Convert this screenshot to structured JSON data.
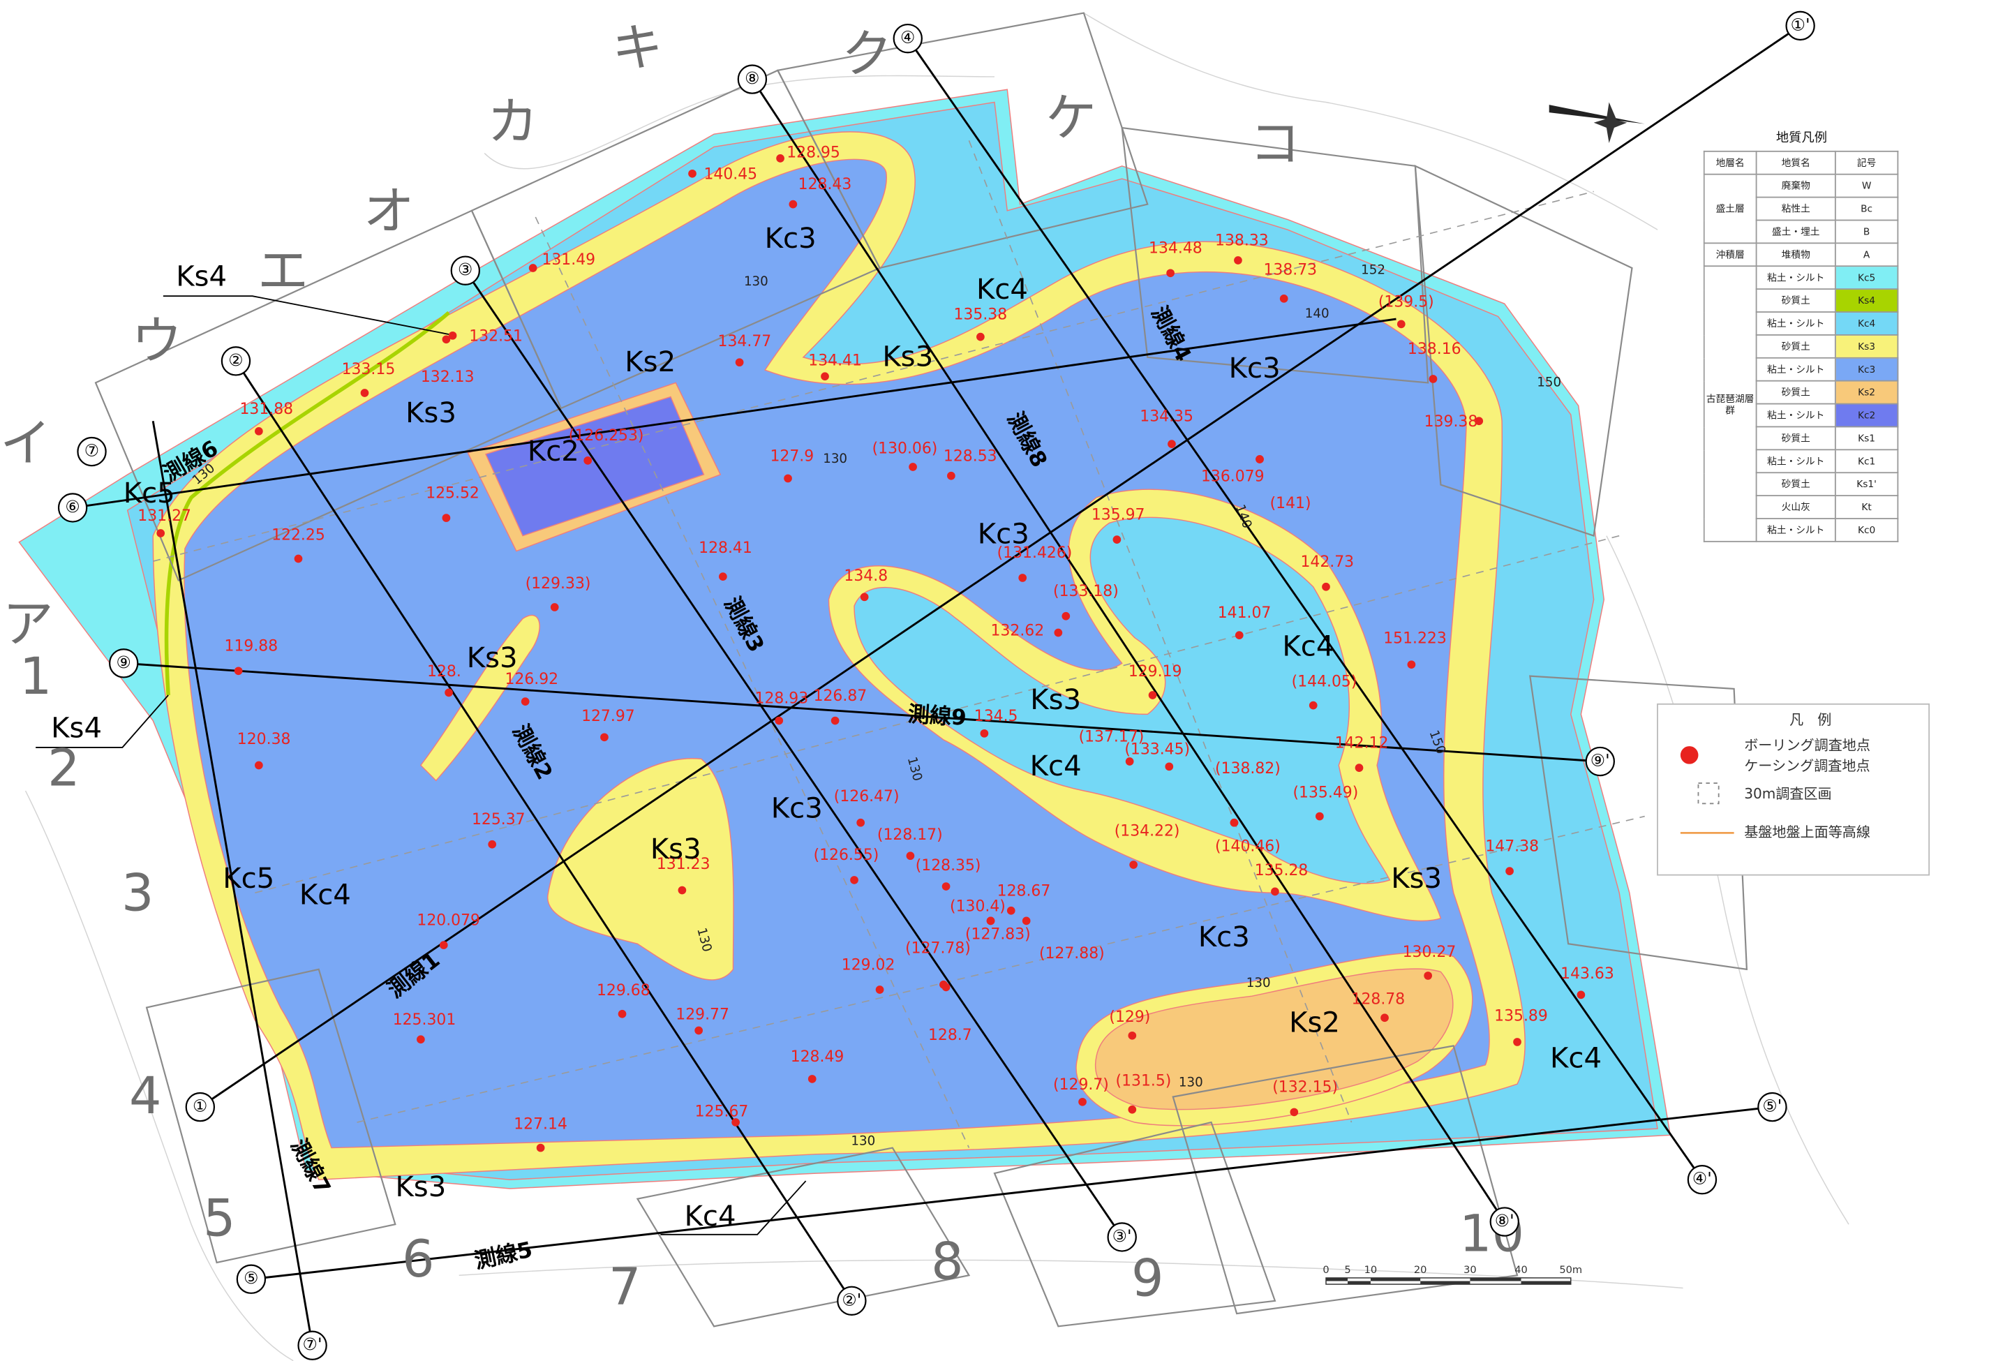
{
  "map": {
    "grid_columns": [
      "ア",
      "イ",
      "ウ",
      "エ",
      "オ",
      "カ",
      "キ",
      "ク",
      "ケ",
      "コ"
    ],
    "grid_rows": [
      "1",
      "2",
      "3",
      "4",
      "5",
      "6",
      "7",
      "8",
      "9",
      "10"
    ],
    "survey_lines": [
      "測線1",
      "測線2",
      "測線3",
      "測線4",
      "測線5",
      "測線6",
      "測線7",
      "測線8",
      "測線9"
    ],
    "line_markers": [
      "①",
      "①'",
      "②",
      "②'",
      "③",
      "③'",
      "④",
      "④'",
      "⑤",
      "⑤'",
      "⑥",
      "⑦",
      "⑦'",
      "⑧",
      "⑧'",
      "⑨",
      "⑨'"
    ],
    "zones": [
      "Ks4",
      "Ks2",
      "Kc3",
      "Kc4",
      "Ks3",
      "Kc3",
      "Ks3",
      "Kc2",
      "Kc5",
      "Kc3",
      "Ks3",
      "Kc4",
      "Ks3",
      "Kc4",
      "Kc3",
      "Ks3",
      "Ks3",
      "Kc5",
      "Kc4",
      "Kc3",
      "Ks2",
      "Kc4",
      "Ks3",
      "Kc4",
      "Ks4"
    ],
    "boreholes": [
      "140.45",
      "128.95",
      "128.43",
      "131.49",
      "132.51",
      "133.15",
      "132.13",
      "131.88",
      "131.27",
      "125.52",
      "122.25",
      "119.88",
      "120.38",
      "(129.33)",
      "128.",
      "126.92",
      "127.97",
      "125.37",
      "120.079",
      "125.301",
      "129.68",
      "129.77",
      "131.23",
      "127.14",
      "125.67",
      "128.49",
      "129.02",
      "128.7",
      "(127.78)",
      "(127.88)",
      "(130.4)",
      "(127.83)",
      "128.67",
      "(128.35)",
      "(128.17)",
      "(126.55)",
      "(126.47)",
      "128.93",
      "126.87",
      "128.41",
      "127.9",
      "(130.06)",
      "128.53",
      "134.77",
      "134.41",
      "135.38",
      "(126.253)",
      "134.8",
      "(131.426)",
      "(133.18)",
      "132.62",
      "129.19",
      "134.5",
      "(137.17)",
      "(133.45)",
      "(138.82)",
      "(135.49)",
      "(134.22)",
      "(140.46)",
      "135.28",
      "142.12",
      "(144.05)",
      "141.07",
      "151.223",
      "142.73",
      "(141)",
      "136.079",
      "135.97",
      "134.35",
      "134.48",
      "138.33",
      "138.73",
      "(139.5)",
      "138.16",
      "139.38",
      "147.38",
      "143.63",
      "135.89",
      "130.27",
      "128.78",
      "(129)",
      "(129.7)",
      "(131.5)",
      "(132.15)"
    ],
    "contour_labels": [
      "130",
      "130",
      "130",
      "130",
      "130",
      "130",
      "130",
      "130",
      "140",
      "140",
      "150",
      "150",
      "152"
    ]
  },
  "geology_legend": {
    "title": "地質凡例",
    "headers": [
      "地層名",
      "地質名",
      "記号"
    ],
    "groups": [
      {
        "name": "盛土層",
        "rows": [
          {
            "name": "廃棄物",
            "symbol": "W"
          },
          {
            "name": "粘性土",
            "symbol": "Bc"
          },
          {
            "name": "盛土・埋土",
            "symbol": "B"
          }
        ]
      },
      {
        "name": "沖積層",
        "rows": [
          {
            "name": "堆積物",
            "symbol": "A"
          }
        ]
      },
      {
        "name": "古琵琶湖層群",
        "rows": [
          {
            "name": "粘土・シルト",
            "symbol": "Kc5",
            "color": "#80eef4"
          },
          {
            "name": "砂質土",
            "symbol": "Ks4",
            "color": "#a8d400"
          },
          {
            "name": "粘土・シルト",
            "symbol": "Kc4",
            "color": "#74d8f6"
          },
          {
            "name": "砂質土",
            "symbol": "Ks3",
            "color": "#f8f27a"
          },
          {
            "name": "粘土・シルト",
            "symbol": "Kc3",
            "color": "#7aa8f5"
          },
          {
            "name": "砂質土",
            "symbol": "Ks2",
            "color": "#f8c97a"
          },
          {
            "name": "粘土・シルト",
            "symbol": "Kc2",
            "color": "#6f7bef"
          },
          {
            "name": "砂質土",
            "symbol": "Ks1"
          },
          {
            "name": "粘土・シルト",
            "symbol": "Kc1"
          },
          {
            "name": "砂質土",
            "symbol": "Ks1'"
          },
          {
            "name": "火山灰",
            "symbol": "Kt"
          },
          {
            "name": "粘土・シルト",
            "symbol": "Kc0"
          }
        ]
      }
    ]
  },
  "legend": {
    "title": "凡　例",
    "items": [
      "ボーリング調査地点",
      "ケーシング調査地点",
      "30m調査区画",
      "基盤地盤上面等高線"
    ]
  },
  "scale_bar": {
    "labels": [
      "0",
      "5",
      "10",
      "20",
      "30",
      "40",
      "50m"
    ]
  }
}
